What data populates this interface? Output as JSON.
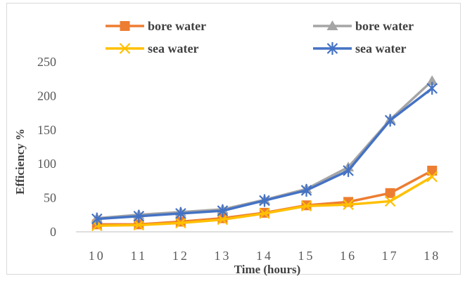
{
  "chart_data": {
    "type": "line",
    "title": "",
    "xlabel": "Time (hours)",
    "ylabel": "Efficiency %",
    "x": [
      10,
      11,
      12,
      13,
      14,
      15,
      16,
      17,
      18
    ],
    "ylim": [
      0,
      250
    ],
    "yticks": [
      0,
      50,
      100,
      150,
      200,
      250
    ],
    "grid": false,
    "legend_position": "top",
    "series": [
      {
        "name": "bore water",
        "color": "#ED7D31",
        "marker": "square",
        "values": [
          11,
          11,
          15,
          20,
          28,
          39,
          44,
          57,
          90
        ]
      },
      {
        "name": "sea water",
        "color": "#FFC000",
        "marker": "x",
        "values": [
          9,
          10,
          13,
          18,
          27,
          38,
          40,
          45,
          81
        ]
      },
      {
        "name": "bore water",
        "color": "#A5A5A5",
        "marker": "triangle",
        "values": [
          20,
          25,
          29,
          33,
          47,
          63,
          95,
          165,
          222
        ]
      },
      {
        "name": "sea water",
        "color": "#4472C4",
        "marker": "star",
        "values": [
          19,
          23,
          27,
          31,
          46,
          61,
          90,
          164,
          211
        ]
      }
    ]
  }
}
